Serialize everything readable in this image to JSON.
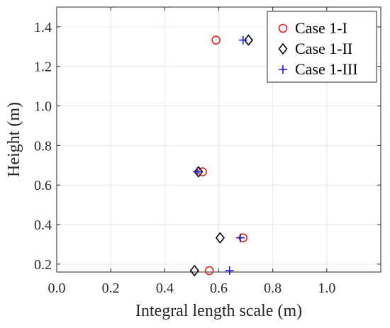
{
  "chart_data": {
    "type": "scatter",
    "xlabel": "Integral length scale (m)",
    "ylabel": "Height (m)",
    "xlim": [
      0,
      1.2
    ],
    "ylim": [
      0.16,
      1.5
    ],
    "xticks": [
      0.0,
      0.2,
      0.4,
      0.6,
      0.8,
      1.0
    ],
    "yticks": [
      0.2,
      0.4,
      0.6,
      0.8,
      1.0,
      1.2,
      1.4
    ],
    "grid": true,
    "legend_position": "top-right",
    "series": [
      {
        "name": "Case 1-I",
        "marker": "circle",
        "color": "#e8201b",
        "points": [
          {
            "x": 0.59,
            "y": 1.333
          },
          {
            "x": 0.54,
            "y": 0.667
          },
          {
            "x": 0.69,
            "y": 0.333
          },
          {
            "x": 0.565,
            "y": 0.167
          }
        ]
      },
      {
        "name": "Case 1-II",
        "marker": "diamond",
        "color": "#000000",
        "points": [
          {
            "x": 0.71,
            "y": 1.333
          },
          {
            "x": 0.525,
            "y": 0.667
          },
          {
            "x": 0.605,
            "y": 0.333
          },
          {
            "x": 0.51,
            "y": 0.167
          }
        ]
      },
      {
        "name": "Case 1-III",
        "marker": "plus",
        "color": "#1414e6",
        "points": [
          {
            "x": 0.69,
            "y": 1.333
          },
          {
            "x": 0.52,
            "y": 0.667
          },
          {
            "x": 0.68,
            "y": 0.333
          },
          {
            "x": 0.64,
            "y": 0.167
          }
        ]
      }
    ]
  }
}
